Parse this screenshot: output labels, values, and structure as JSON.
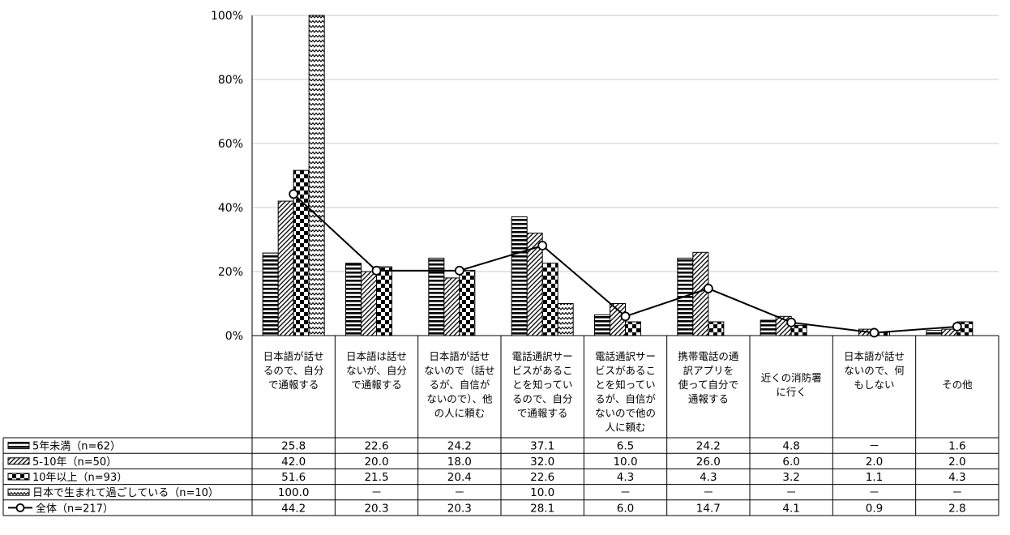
{
  "chart_data": {
    "type": "bar",
    "title": "",
    "xlabel": "",
    "ylabel": "",
    "ylim": [
      0,
      100
    ],
    "yticks": [
      0,
      20,
      40,
      60,
      80,
      100
    ],
    "ytick_labels": [
      "0%",
      "20%",
      "40%",
      "60%",
      "80%",
      "100%"
    ],
    "grid": true,
    "legend_placement": "data-table-left",
    "categories": [
      [
        "日本語が話せ",
        "るので、自分",
        "で通報する"
      ],
      [
        "日本語は話せ",
        "ないが、自分",
        "で通報する"
      ],
      [
        "日本語が話せ",
        "ないので（話せ",
        "るが、自信が",
        "ないので）、他",
        "の人に頼む"
      ],
      [
        "電話通訳サー",
        "ビスがあるこ",
        "とを知ってい",
        "るので、自分",
        "で通報する"
      ],
      [
        "電話通訳サー",
        "ビスがあるこ",
        "とを知ってい",
        "るが、自信が",
        "ないので他の",
        "人に頼む"
      ],
      [
        "携帯電話の通",
        "訳アプリを",
        "使って自分で",
        "通報する"
      ],
      [
        "近くの消防署",
        "に行く"
      ],
      [
        "日本語が話せ",
        "ないので、何",
        "もしない"
      ],
      [
        "その他"
      ]
    ],
    "series": [
      {
        "name": "5年未満（n=62）",
        "kind": "bar",
        "pattern": "horizontal-stripes",
        "values": [
          25.8,
          22.6,
          24.2,
          37.1,
          6.5,
          24.2,
          4.8,
          null,
          1.6
        ],
        "labels": [
          "25.8",
          "22.6",
          "24.2",
          "37.1",
          "6.5",
          "24.2",
          "4.8",
          "－",
          "1.6"
        ]
      },
      {
        "name": "5-10年（n=50）",
        "kind": "bar",
        "pattern": "diagonal-stripes",
        "values": [
          42.0,
          20.0,
          18.0,
          32.0,
          10.0,
          26.0,
          6.0,
          2.0,
          2.0
        ],
        "labels": [
          "42.0",
          "20.0",
          "18.0",
          "32.0",
          "10.0",
          "26.0",
          "6.0",
          "2.0",
          "2.0"
        ]
      },
      {
        "name": "10年以上（n=93）",
        "kind": "bar",
        "pattern": "checkerboard",
        "values": [
          51.6,
          21.5,
          20.4,
          22.6,
          4.3,
          4.3,
          3.2,
          1.1,
          4.3
        ],
        "labels": [
          "51.6",
          "21.5",
          "20.4",
          "22.6",
          "4.3",
          "4.3",
          "3.2",
          "1.1",
          "4.3"
        ]
      },
      {
        "name": "日本で生まれて過ごしている（n=10）",
        "kind": "bar",
        "pattern": "zigzag",
        "values": [
          100.0,
          null,
          null,
          10.0,
          null,
          null,
          null,
          null,
          null
        ],
        "labels": [
          "100.0",
          "－",
          "－",
          "10.0",
          "－",
          "－",
          "－",
          "－",
          "－"
        ]
      },
      {
        "name": "全体（n=217）",
        "kind": "line",
        "color": "#000000",
        "values": [
          44.2,
          20.3,
          20.3,
          28.1,
          6.0,
          14.7,
          4.1,
          0.9,
          2.8
        ],
        "labels": [
          "44.2",
          "20.3",
          "20.3",
          "28.1",
          "6.0",
          "14.7",
          "4.1",
          "0.9",
          "2.8"
        ]
      }
    ],
    "colors": {
      "ink": "#000000",
      "grid": "#c8c8c8",
      "background": "#ffffff"
    }
  }
}
